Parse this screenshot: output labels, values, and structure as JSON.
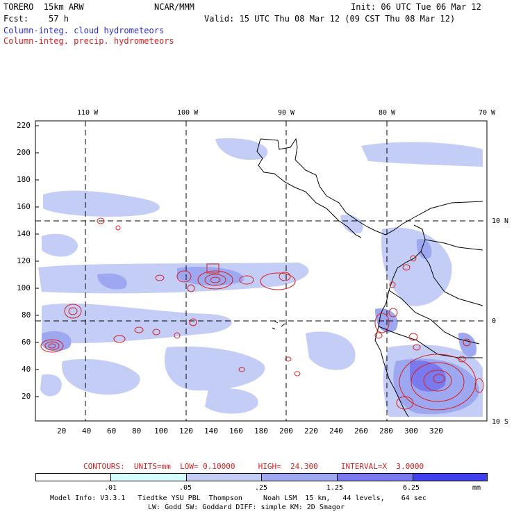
{
  "header": {
    "model": "TORERO  15km ARW",
    "org": "NCAR/MMM",
    "init": "Init: 06 UTC Tue 06 Mar 12",
    "fcst": "Fcst:    57 h",
    "valid": "Valid: 15 UTC Thu 08 Mar 12 (09 CST Thu 08 Mar 12)",
    "field1": "Column-integ. cloud hydrometeors",
    "field2": "Column-integ. precip. hydrometeors"
  },
  "map": {
    "lon_labels": [
      "110 W",
      "100 W",
      "90 W",
      "80 W",
      "70 W"
    ],
    "lat_labels": [
      "10 N",
      "0",
      "10 S"
    ],
    "y_ticks": [
      "220",
      "200",
      "180",
      "160",
      "140",
      "120",
      "100",
      "80",
      "60",
      "40",
      "20"
    ],
    "x_ticks": [
      "20",
      "40",
      "60",
      "80",
      "100",
      "120",
      "140",
      "160",
      "180",
      "200",
      "220",
      "240",
      "260",
      "280",
      "300",
      "320"
    ]
  },
  "contours": {
    "line": "CONTOURS:  UNITS=mm  LOW= 0.10000     HIGH=  24.300     INTERVAL=X  3.0000"
  },
  "colorbar": {
    "labels": [
      ".01",
      ".05",
      ".25",
      "1.25",
      "6.25"
    ],
    "units": "mm",
    "colors": [
      "#ffffff",
      "#d6ffff",
      "#c4cdf6",
      "#9ea8f0",
      "#7a7aee",
      "#5656ee",
      "#2b2bf0"
    ]
  },
  "footer": {
    "line1": "Model Info: V3.3.1   Tiedtke YSU PBL  Thompson     Noah LSM  15 km,   44 levels,    64 sec",
    "line2": "LW: Godd SW: Goddard DIFF: simple KM: 2D Smagor"
  }
}
